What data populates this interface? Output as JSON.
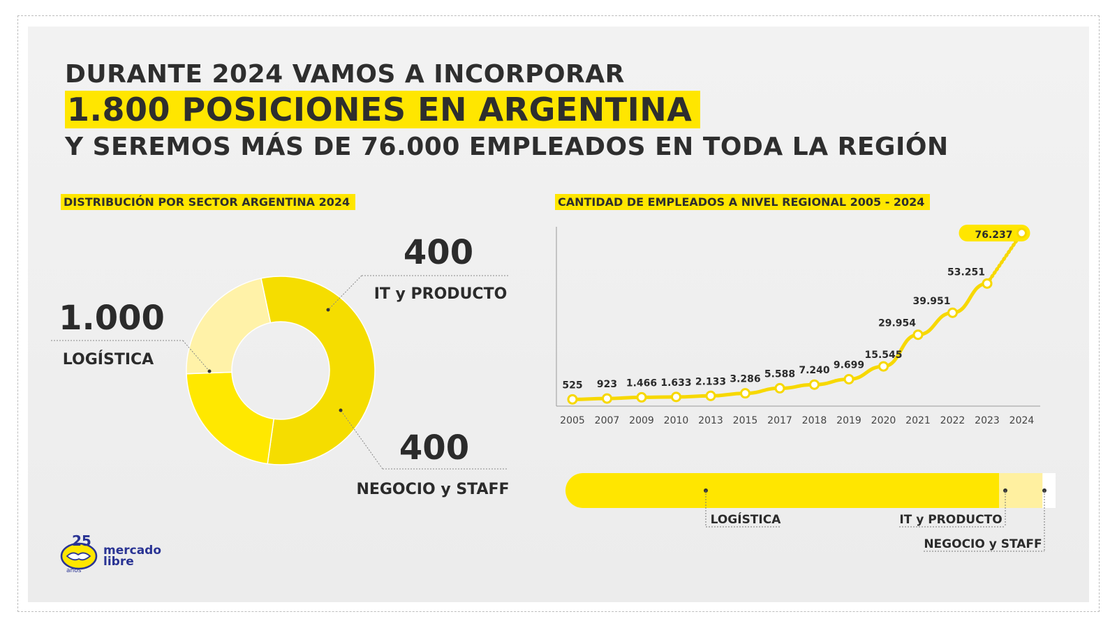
{
  "headline": {
    "line1": "DURANTE 2024 VAMOS A INCORPORAR",
    "line2": "1.800 POSICIONES EN ARGENTINA",
    "line3": "Y SEREMOS MÁS DE 76.000 EMPLEADOS EN TODA LA REGIÓN"
  },
  "brand": {
    "line1": "mercado",
    "line2": "libre",
    "badge_number": "25",
    "badge_word": "años"
  },
  "colors": {
    "accent": "#ffe600",
    "donut_main": "#f5dd00",
    "donut_it": "#ffe800",
    "donut_staff": "#fff2a8",
    "line": "#f7d800",
    "text": "#2b2b2b"
  },
  "chart_data": [
    {
      "type": "pie",
      "title": "DISTRIBUCIÓN POR SECTOR ARGENTINA 2024",
      "donut": true,
      "slices": [
        {
          "label": "LOGÍSTICA",
          "value": 1000,
          "value_label": "1.000"
        },
        {
          "label": "IT y PRODUCTO",
          "value": 400,
          "value_label": "400"
        },
        {
          "label": "NEGOCIO y STAFF",
          "value": 400,
          "value_label": "400"
        }
      ]
    },
    {
      "type": "line",
      "title": "CANTIDAD DE EMPLEADOS A NIVEL REGIONAL 2005 - 2024",
      "x": [
        "2005",
        "2007",
        "2009",
        "2010",
        "2013",
        "2015",
        "2017",
        "2018",
        "2019",
        "2020",
        "2021",
        "2022",
        "2023",
        "2024"
      ],
      "values": [
        525,
        923,
        1466,
        1633,
        2133,
        3286,
        5588,
        7240,
        9699,
        15545,
        29954,
        39951,
        53251,
        76237
      ],
      "value_labels": [
        "525",
        "923",
        "1.466",
        "1.633",
        "2.133",
        "3.286",
        "5.588",
        "7.240",
        "9.699",
        "15.545",
        "29.954",
        "39.951",
        "53.251",
        "76.237"
      ],
      "ylim": [
        0,
        76237
      ],
      "grid": false,
      "highlight_last": true
    },
    {
      "type": "bar",
      "orientation": "horizontal-stacked",
      "segments": [
        {
          "label": "LOGÍSTICA",
          "value": 1000
        },
        {
          "label": "IT y PRODUCTO",
          "value": 100
        },
        {
          "label": "NEGOCIO y STAFF",
          "value": 30
        }
      ]
    }
  ]
}
